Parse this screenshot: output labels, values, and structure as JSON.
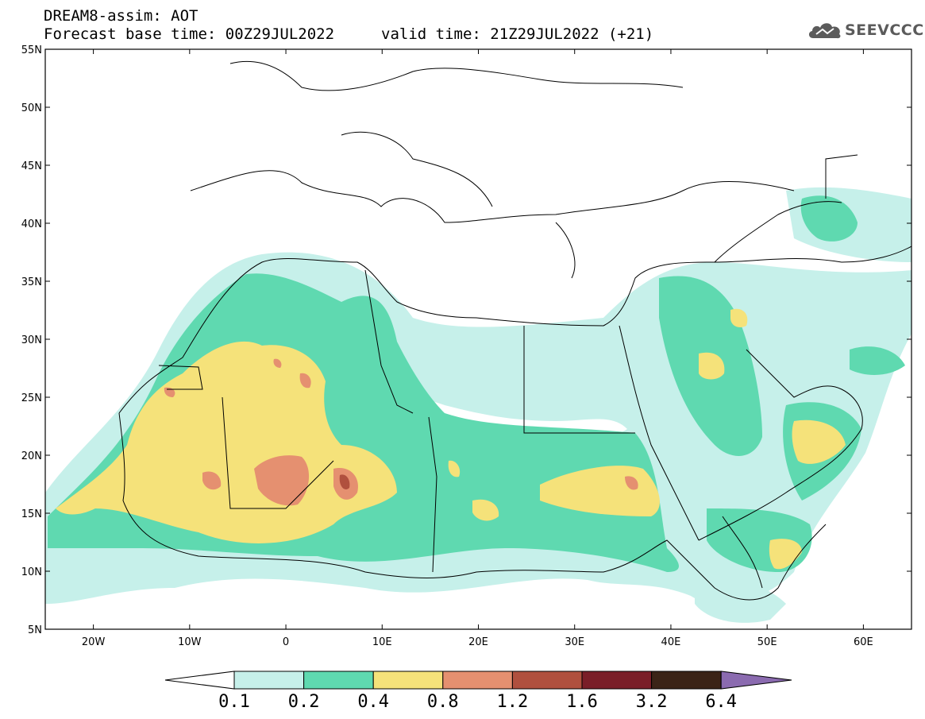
{
  "header": {
    "title": "DREAM8-assim: AOT",
    "base_time": "Forecast base time: 00Z29JUL2022",
    "valid_time": "valid time: 21Z29JUL2022 (+21)"
  },
  "logo": {
    "text": "SEEVCCC",
    "icon": "cloud-icon"
  },
  "map": {
    "lat_ticks": [
      "55N",
      "50N",
      "45N",
      "40N",
      "35N",
      "30N",
      "25N",
      "20N",
      "15N",
      "10N",
      "5N"
    ],
    "lon_ticks": [
      "20W",
      "10W",
      "0",
      "10E",
      "20E",
      "30E",
      "40E",
      "50E",
      "60E"
    ],
    "lat_range": [
      5,
      55
    ],
    "lon_range": [
      -25,
      65
    ]
  },
  "colorbar": {
    "labels": [
      "0.1",
      "0.2",
      "0.4",
      "0.8",
      "1.2",
      "1.6",
      "3.2",
      "6.4"
    ],
    "colors": [
      "#ffffff",
      "#c6f0ea",
      "#5fd9b0",
      "#f5e27a",
      "#e59070",
      "#b0503e",
      "#7a1e28",
      "#3b2417",
      "#8b6bb0"
    ]
  }
}
